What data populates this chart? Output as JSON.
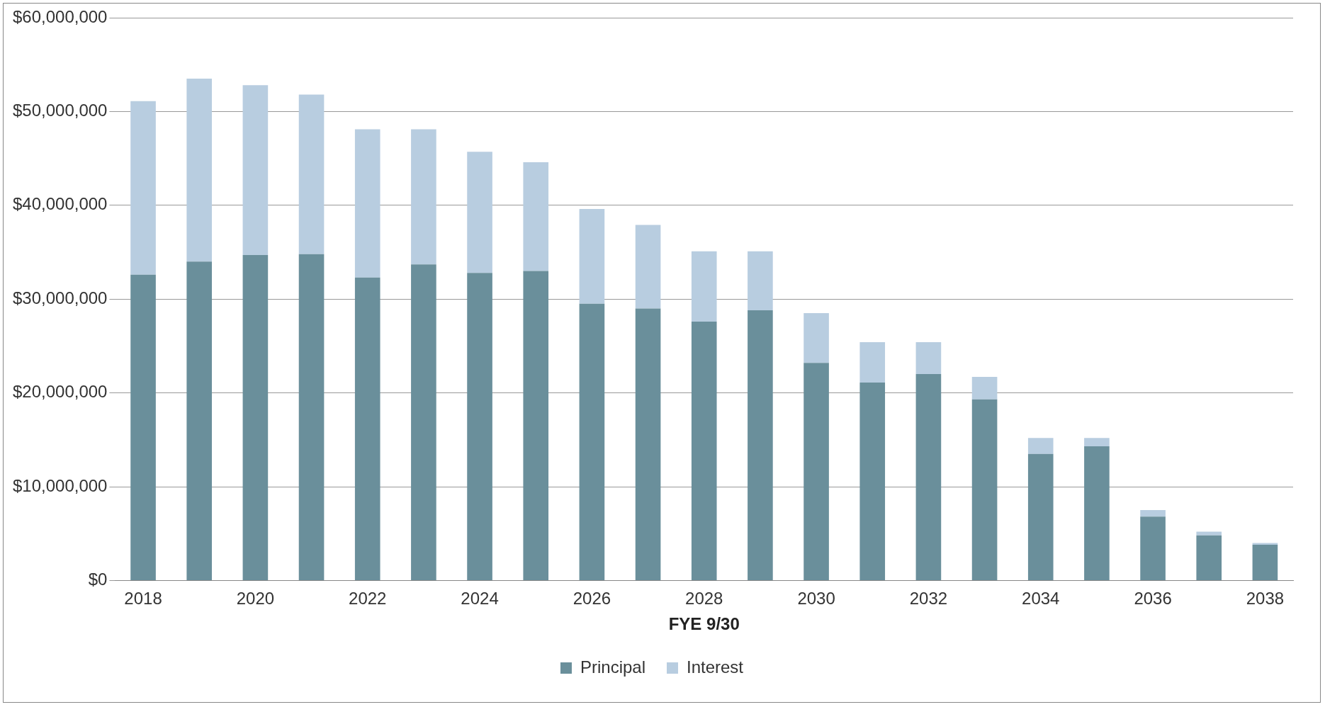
{
  "chart_data": {
    "type": "bar",
    "stacked": true,
    "xlabel": "FYE 9/30",
    "categories": [
      "2018",
      null,
      "2020",
      null,
      "2022",
      null,
      "2024",
      null,
      "2026",
      null,
      "2028",
      null,
      "2030",
      null,
      "2032",
      null,
      "2034",
      null,
      "2036",
      null,
      "2038"
    ],
    "series": [
      {
        "name": "Principal",
        "color": "#6a8f9b",
        "values": [
          32600000,
          34000000,
          34700000,
          34800000,
          32300000,
          33700000,
          32800000,
          33000000,
          29500000,
          29000000,
          27600000,
          28800000,
          23200000,
          21100000,
          22000000,
          19300000,
          13500000,
          14300000,
          6800000,
          4800000,
          3800000
        ]
      },
      {
        "name": "Interest",
        "color": "#b8cde0",
        "values": [
          18500000,
          19500000,
          18100000,
          17000000,
          15800000,
          14400000,
          12900000,
          11600000,
          10100000,
          8900000,
          7500000,
          6300000,
          5300000,
          4300000,
          3400000,
          2400000,
          1700000,
          900000,
          700000,
          400000,
          200000
        ]
      }
    ],
    "ylim": [
      0,
      60000000
    ],
    "yticks": [
      {
        "value": 0,
        "label": "$0"
      },
      {
        "value": 10000000,
        "label": "$10,000,000"
      },
      {
        "value": 20000000,
        "label": "$20,000,000"
      },
      {
        "value": 30000000,
        "label": "$30,000,000"
      },
      {
        "value": 40000000,
        "label": "$40,000,000"
      },
      {
        "value": 50000000,
        "label": "$50,000,000"
      },
      {
        "value": 60000000,
        "label": "$60,000,000"
      }
    ],
    "grid": "y",
    "legend": "bottom"
  }
}
